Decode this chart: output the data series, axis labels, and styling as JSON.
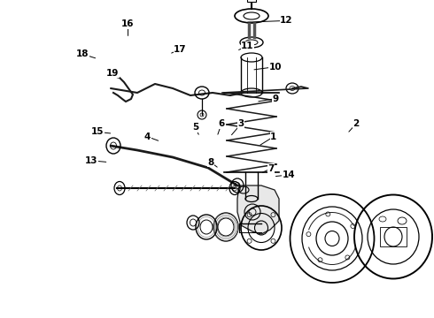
{
  "background_color": "#ffffff",
  "line_color": "#1a1a1a",
  "fig_width": 4.9,
  "fig_height": 3.6,
  "dpi": 100,
  "label_arrows": {
    "1": [
      0.63,
      0.43,
      0.595,
      0.46
    ],
    "2": [
      0.82,
      0.39,
      0.8,
      0.42
    ],
    "3": [
      0.555,
      0.39,
      0.53,
      0.43
    ],
    "4": [
      0.34,
      0.43,
      0.37,
      0.445
    ],
    "5": [
      0.45,
      0.4,
      0.46,
      0.43
    ],
    "6": [
      0.51,
      0.39,
      0.5,
      0.43
    ],
    "7": [
      0.625,
      0.53,
      0.6,
      0.545
    ],
    "8": [
      0.485,
      0.51,
      0.505,
      0.53
    ],
    "9": [
      0.635,
      0.31,
      0.59,
      0.32
    ],
    "10": [
      0.635,
      0.21,
      0.58,
      0.22
    ],
    "11": [
      0.57,
      0.145,
      0.545,
      0.16
    ],
    "12": [
      0.66,
      0.065,
      0.565,
      0.07
    ],
    "13": [
      0.21,
      0.505,
      0.25,
      0.51
    ],
    "14": [
      0.665,
      0.55,
      0.63,
      0.555
    ],
    "15": [
      0.225,
      0.415,
      0.26,
      0.42
    ],
    "16": [
      0.295,
      0.075,
      0.295,
      0.12
    ],
    "17": [
      0.415,
      0.155,
      0.39,
      0.17
    ],
    "18": [
      0.19,
      0.17,
      0.225,
      0.185
    ],
    "19": [
      0.26,
      0.23,
      0.26,
      0.21
    ]
  }
}
